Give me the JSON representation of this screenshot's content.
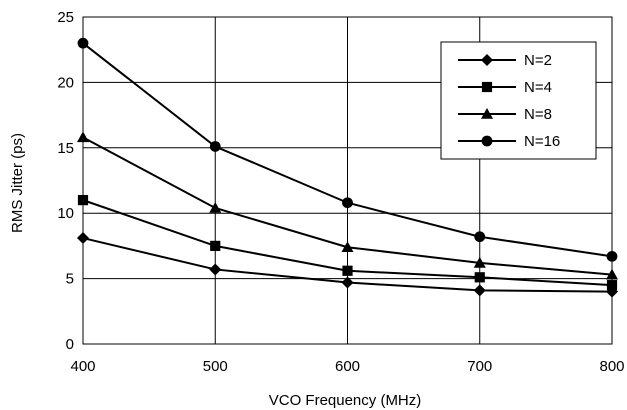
{
  "chart_data": {
    "type": "line",
    "xlabel": "VCO Frequency (MHz)",
    "ylabel": "RMS Jitter (ps)",
    "x": [
      400,
      500,
      600,
      700,
      800
    ],
    "xlim": [
      400,
      800
    ],
    "ylim": [
      0,
      25
    ],
    "xticks": [
      "400",
      "500",
      "600",
      "700",
      "800"
    ],
    "yticks": [
      "0",
      "5",
      "10",
      "15",
      "20",
      "25"
    ],
    "grid": true,
    "legend_position": "top-right",
    "series": [
      {
        "name": "N=2",
        "marker": "diamond",
        "values": [
          8.1,
          5.7,
          4.7,
          4.1,
          4.0
        ]
      },
      {
        "name": "N=4",
        "marker": "square",
        "values": [
          11.0,
          7.5,
          5.6,
          5.1,
          4.5
        ]
      },
      {
        "name": "N=8",
        "marker": "triangle",
        "values": [
          15.8,
          10.4,
          7.4,
          6.2,
          5.3
        ]
      },
      {
        "name": "N=16",
        "marker": "circle",
        "values": [
          23.0,
          15.1,
          10.8,
          8.2,
          6.7
        ]
      }
    ],
    "colors": {
      "line": "#000000",
      "grid": "#000000",
      "background": "#ffffff"
    }
  }
}
